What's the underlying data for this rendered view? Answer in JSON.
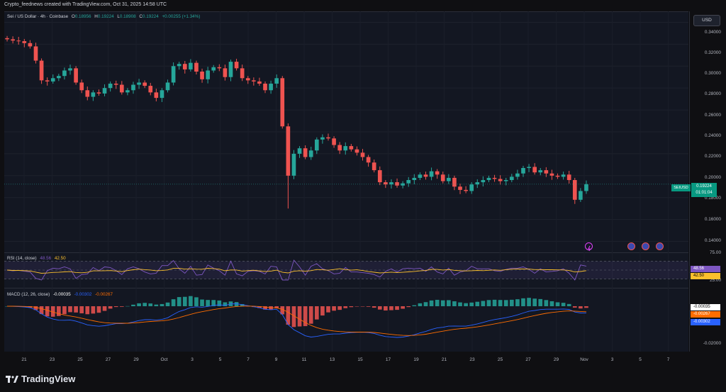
{
  "header": {
    "caption": "Crypto_feednews created with TradingView.com, Oct 31, 2025 14:58 UTC"
  },
  "legend": {
    "symbol": "Sei / US Dollar · 4h · Coinbase",
    "open_label": "O",
    "open": "0.18956",
    "high_label": "H",
    "high": "0.19224",
    "low_label": "L",
    "low": "0.18908",
    "close_label": "C",
    "close": "0.19224",
    "change": "+0.00255 (+1.34%)"
  },
  "currency_button": "USD",
  "price_axis": [
    "0.34000",
    "0.32000",
    "0.30000",
    "0.28000",
    "0.26000",
    "0.24000",
    "0.22000",
    "0.20000",
    "0.18000",
    "0.16000",
    "0.14000"
  ],
  "current_price_tag": {
    "symbol": "SEIUSD",
    "price": "0.19224",
    "countdown": "01:01:04"
  },
  "rsi": {
    "label": "RSI (14, close)",
    "rsi_value": "48.56",
    "ma_value": "42.50",
    "axis": [
      "75.00",
      "25.00"
    ],
    "tags": [
      "48.56",
      "42.50"
    ]
  },
  "macd": {
    "label": "MACD (12, 26, close)",
    "hist": "-0.00035",
    "macd": "-0.00302",
    "signal": "-0.00267",
    "axis": [
      "-0.02000"
    ],
    "tags": [
      "-0.00035",
      "-0.00267",
      "-0.00302"
    ]
  },
  "time_axis": [
    "21",
    "23",
    "25",
    "27",
    "29",
    "Oct",
    "3",
    "5",
    "7",
    "9",
    "11",
    "13",
    "15",
    "17",
    "19",
    "21",
    "23",
    "25",
    "27",
    "29",
    "Nov",
    "3",
    "5",
    "7"
  ],
  "footer": {
    "brand": "TradingView"
  },
  "colors": {
    "up": "#26a69a",
    "down": "#ef5350",
    "rsi_line": "#7e57c2",
    "rsi_ma": "#fbc02d",
    "macd_line": "#2962ff",
    "signal_line": "#ff6d00",
    "background": "#131722"
  },
  "chart_data": {
    "type": "candlestick",
    "symbol": "SEIUSD",
    "interval": "4h",
    "ylim": [
      0.13,
      0.35
    ],
    "x_labels": [
      "21",
      "23",
      "25",
      "27",
      "29",
      "Oct",
      "3",
      "5",
      "7",
      "9",
      "11",
      "13",
      "15",
      "17",
      "19",
      "21",
      "23",
      "25",
      "27",
      "29",
      "Nov",
      "3",
      "5",
      "7"
    ],
    "close_series": [
      0.3245,
      0.3233,
      0.3228,
      0.321,
      0.318,
      0.305,
      0.287,
      0.286,
      0.289,
      0.291,
      0.296,
      0.298,
      0.285,
      0.278,
      0.272,
      0.276,
      0.275,
      0.28,
      0.284,
      0.283,
      0.276,
      0.278,
      0.283,
      0.285,
      0.282,
      0.276,
      0.271,
      0.278,
      0.285,
      0.3,
      0.302,
      0.297,
      0.303,
      0.295,
      0.288,
      0.296,
      0.299,
      0.298,
      0.29,
      0.304,
      0.298,
      0.289,
      0.287,
      0.286,
      0.284,
      0.278,
      0.284,
      0.289,
      0.245,
      0.2,
      0.22,
      0.225,
      0.217,
      0.223,
      0.233,
      0.235,
      0.234,
      0.228,
      0.223,
      0.227,
      0.224,
      0.221,
      0.217,
      0.212,
      0.205,
      0.194,
      0.192,
      0.194,
      0.191,
      0.193,
      0.196,
      0.198,
      0.201,
      0.199,
      0.204,
      0.201,
      0.195,
      0.198,
      0.19,
      0.187,
      0.186,
      0.192,
      0.194,
      0.196,
      0.198,
      0.197,
      0.195,
      0.196,
      0.199,
      0.202,
      0.207,
      0.208,
      0.203,
      0.205,
      0.202,
      0.2,
      0.199,
      0.201,
      0.196,
      0.178,
      0.186,
      0.1922
    ],
    "rsi": {
      "value": 48.56,
      "ma": 42.5,
      "upper_band": 75,
      "lower_band": 25
    },
    "macd": {
      "histogram": -0.00035,
      "macd": -0.00302,
      "signal": -0.00267,
      "min_label": -0.02
    }
  }
}
